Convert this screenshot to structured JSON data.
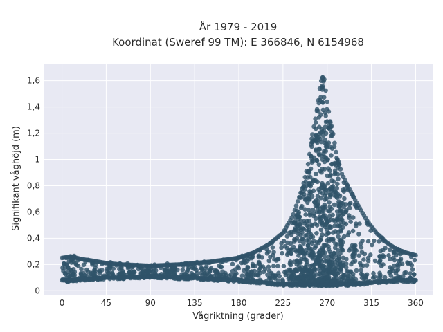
{
  "chart_data": {
    "type": "scatter",
    "title_lines": [
      "År 1979 - 2019",
      "Koordinat (Sweref 99 TM): E 366846, N 6154968"
    ],
    "xlabel": "Vågriktning (grader)",
    "ylabel": "Signifikant våghöjd (m)",
    "xlim": [
      -18,
      378
    ],
    "ylim": [
      -0.03,
      1.73
    ],
    "x_ticks": [
      0,
      45,
      90,
      135,
      180,
      225,
      270,
      315,
      360
    ],
    "x_tick_labels": [
      "0",
      "45",
      "90",
      "135",
      "180",
      "225",
      "270",
      "315",
      "360"
    ],
    "y_ticks": [
      0,
      0.2,
      0.4,
      0.6,
      0.8,
      1.0,
      1.2,
      1.4,
      1.6
    ],
    "y_tick_labels": [
      "0",
      "0,2",
      "0,4",
      "0,6",
      "0,8",
      "1",
      "1,2",
      "1,4",
      "1,6"
    ],
    "grid": true,
    "background_color": "#e8e9f3",
    "marker_color": "#2f5369",
    "series": [
      {
        "x": [
          0,
          10,
          20,
          30,
          45,
          60,
          90,
          120,
          135,
          150,
          180,
          195,
          210,
          225,
          235,
          245,
          250,
          255,
          260,
          263,
          265,
          267,
          270,
          273,
          275,
          280,
          285,
          290,
          300,
          310,
          315,
          320,
          330,
          340,
          350,
          360
        ],
        "ymin": [
          0.07,
          0.07,
          0.08,
          0.08,
          0.09,
          0.09,
          0.1,
          0.09,
          0.09,
          0.08,
          0.07,
          0.06,
          0.05,
          0.04,
          0.04,
          0.04,
          0.04,
          0.04,
          0.04,
          0.04,
          0.04,
          0.04,
          0.04,
          0.04,
          0.04,
          0.04,
          0.04,
          0.04,
          0.04,
          0.05,
          0.05,
          0.06,
          0.06,
          0.07,
          0.07,
          0.07
        ],
        "ymax": [
          0.26,
          0.27,
          0.25,
          0.24,
          0.22,
          0.21,
          0.2,
          0.21,
          0.22,
          0.23,
          0.26,
          0.3,
          0.36,
          0.45,
          0.58,
          0.8,
          0.95,
          1.2,
          1.4,
          1.58,
          1.64,
          1.62,
          1.45,
          1.3,
          1.25,
          1.02,
          0.9,
          0.82,
          0.68,
          0.55,
          0.5,
          0.45,
          0.38,
          0.33,
          0.3,
          0.28
        ]
      }
    ]
  }
}
